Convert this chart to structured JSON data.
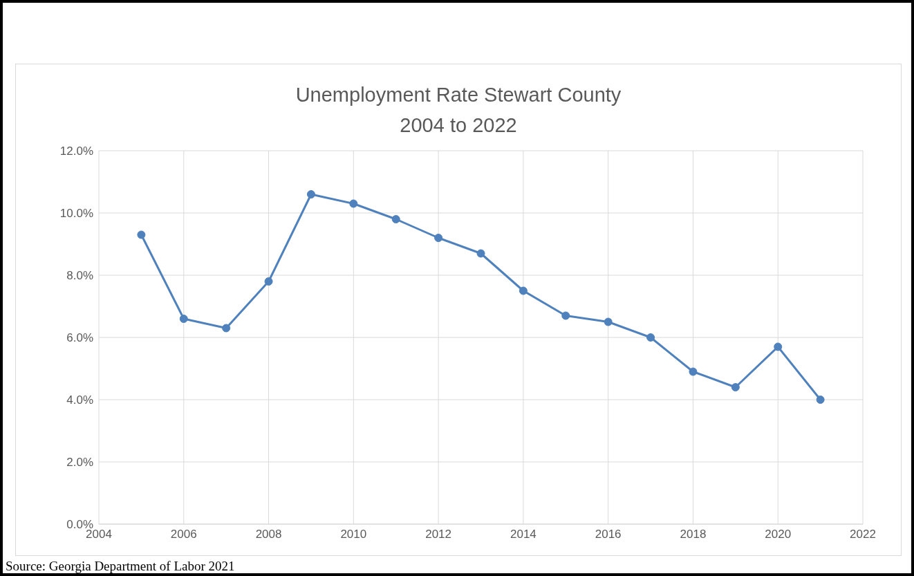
{
  "chart_data": {
    "type": "line",
    "title": "Unemployment Rate Stewart County\n2004 to 2022",
    "x": [
      2005,
      2006,
      2007,
      2008,
      2009,
      2010,
      2011,
      2012,
      2013,
      2014,
      2015,
      2016,
      2017,
      2018,
      2019,
      2020,
      2021
    ],
    "series": [
      {
        "color": "#4f81bd",
        "values": [
          9.3,
          6.6,
          6.3,
          7.8,
          10.6,
          10.3,
          9.8,
          9.2,
          8.7,
          7.5,
          6.7,
          6.5,
          6.0,
          4.9,
          4.4,
          5.7,
          4.0
        ]
      }
    ],
    "xlim": [
      2004,
      2022
    ],
    "xticks": [
      2004,
      2006,
      2008,
      2010,
      2012,
      2014,
      2016,
      2018,
      2020,
      2022
    ],
    "ylim": [
      0,
      12
    ],
    "yticks": [
      {
        "value": 0,
        "label": "0.0%"
      },
      {
        "value": 2,
        "label": "2.0%"
      },
      {
        "value": 4,
        "label": "4.0%"
      },
      {
        "value": 6,
        "label": "6.0%"
      },
      {
        "value": 8,
        "label": "8.0%"
      },
      {
        "value": 10,
        "label": "10.0%"
      },
      {
        "value": 12,
        "label": "12.0%"
      }
    ],
    "grid": true,
    "marker": "circle",
    "line_style": "solid",
    "annotations": [
      "Source: Georgia Department of Labor 2021"
    ]
  }
}
